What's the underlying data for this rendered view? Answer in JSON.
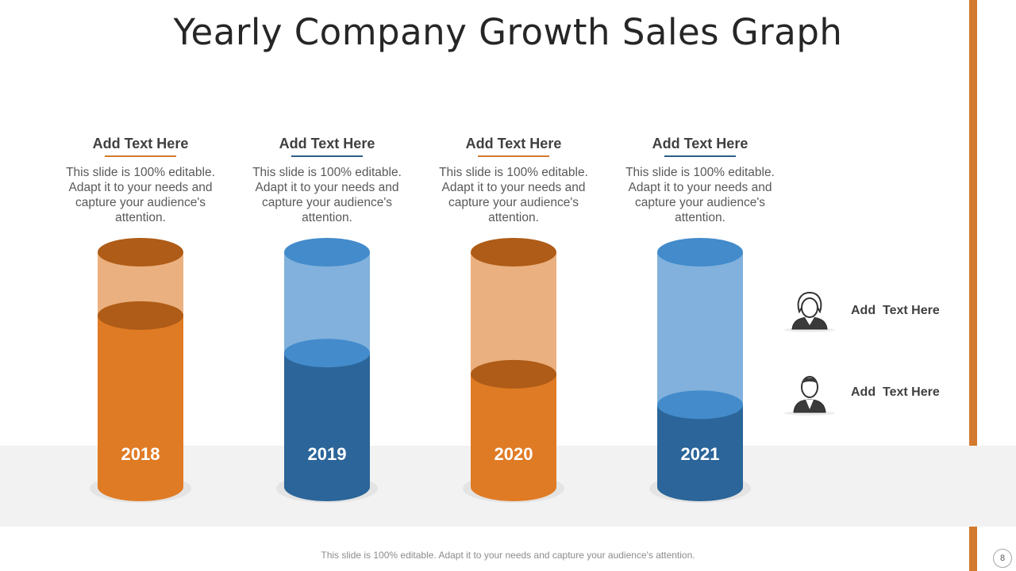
{
  "title": "Yearly Company Growth Sales Graph",
  "chart_data": {
    "type": "bar",
    "categories": [
      "2018",
      "2019",
      "2020",
      "2021"
    ],
    "values": [
      73,
      57,
      48,
      35
    ],
    "ylim": [
      0,
      100
    ],
    "colors": {
      "orange_fill": "#E07B25",
      "orange_top": "#AE5C17",
      "orange_empty": "#EBB07F",
      "blue_fill": "#2B6599",
      "blue_top": "#438BCB",
      "blue_empty": "#81B1DC"
    }
  },
  "columns": [
    {
      "heading": "Add Text Here",
      "body": "This slide is 100% editable. Adapt it to your needs and capture your audience's attention.",
      "accent": "#D27B2E"
    },
    {
      "heading": "Add Text Here",
      "body": "This slide is 100% editable. Adapt it to your needs and capture your audience's attention.",
      "accent": "#2E5E8A"
    },
    {
      "heading": "Add Text Here",
      "body": "This slide is 100% editable. Adapt it to your needs and capture your audience's attention.",
      "accent": "#D27B2E"
    },
    {
      "heading": "Add Text Here",
      "body": "This slide is 100% editable. Adapt it to your needs and capture your audience's attention.",
      "accent": "#2E5E8A"
    }
  ],
  "legend": [
    {
      "icon": "female-avatar-icon",
      "label": "Add  Text Here"
    },
    {
      "icon": "male-avatar-icon",
      "label": "Add  Text Here"
    }
  ],
  "footer": "This slide is 100% editable. Adapt it to your needs and capture your audience's attention.",
  "page_number": "8"
}
